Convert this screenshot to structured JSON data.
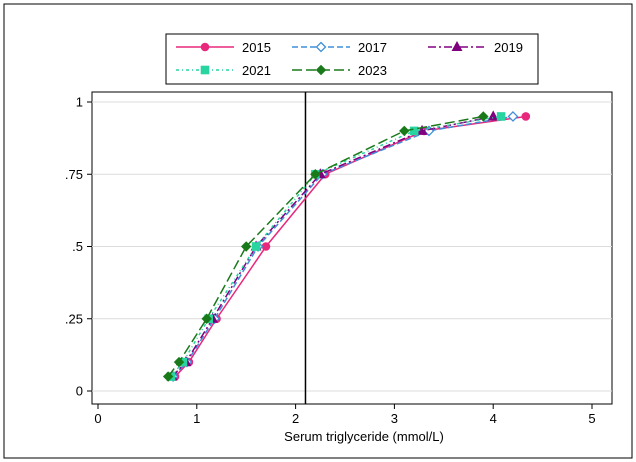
{
  "chart_data": {
    "type": "line",
    "xlabel": "Serum triglyceride (mmol/L)",
    "ylabel": "",
    "xlim": [
      0,
      5
    ],
    "ylim": [
      0,
      1
    ],
    "xticks": [
      0,
      1,
      2,
      3,
      4,
      5
    ],
    "yticks": [
      0,
      0.25,
      0.5,
      0.75,
      1
    ],
    "ytick_labels": [
      "0",
      ".25",
      ".5",
      ".75",
      "1"
    ],
    "grid": true,
    "legend_position": "top",
    "reference_line_x": 2.1,
    "y_levels": [
      0.05,
      0.1,
      0.25,
      0.5,
      0.75,
      0.9,
      0.95
    ],
    "series": [
      {
        "name": "2015",
        "color": "#e8287c",
        "dash": "solid",
        "marker": "circle",
        "x": [
          0.78,
          0.92,
          1.2,
          1.7,
          2.3,
          3.3,
          4.33
        ]
      },
      {
        "name": "2017",
        "color": "#3f8fd8",
        "dash": "dash",
        "marker": "diamond-open",
        "x": [
          0.76,
          0.9,
          1.18,
          1.62,
          2.27,
          3.35,
          4.2
        ]
      },
      {
        "name": "2019",
        "color": "#800080",
        "dash": "dashdot",
        "marker": "triangle",
        "x": [
          0.75,
          0.89,
          1.16,
          1.6,
          2.25,
          3.28,
          4.0
        ]
      },
      {
        "name": "2021",
        "color": "#28d4a0",
        "dash": "dashdot2",
        "marker": "square",
        "x": [
          0.74,
          0.86,
          1.12,
          1.6,
          2.2,
          3.2,
          4.08
        ]
      },
      {
        "name": "2023",
        "color": "#1a7a1a",
        "dash": "longdash",
        "marker": "diamond",
        "x": [
          0.71,
          0.82,
          1.1,
          1.5,
          2.2,
          3.1,
          3.9
        ]
      }
    ]
  }
}
